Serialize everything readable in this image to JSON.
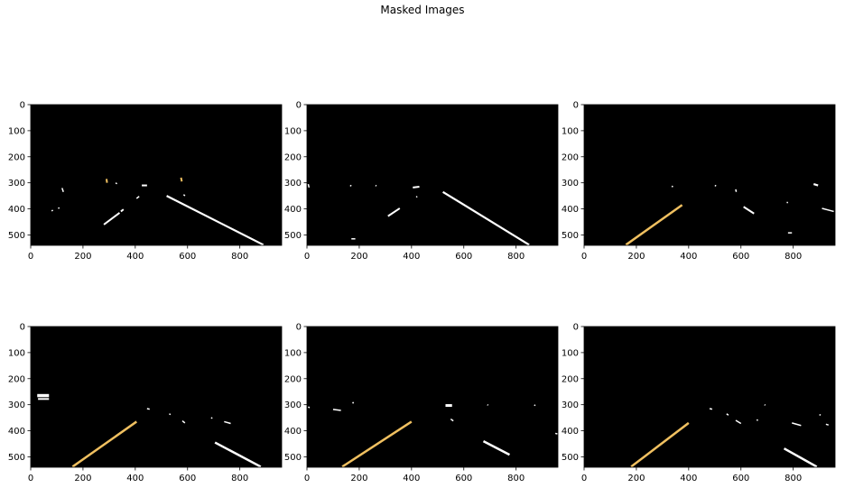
{
  "figure": {
    "title": "Masked Images",
    "background": "#ffffff",
    "image_background": "#000000",
    "white_marks": "#ffffff",
    "yellow_marks": "#f0c060",
    "x_ticks": [
      "0",
      "200",
      "400",
      "600",
      "800"
    ],
    "y_ticks": [
      "0",
      "100",
      "200",
      "300",
      "400",
      "500"
    ],
    "image_width": 960,
    "image_height": 540,
    "panels": [
      {
        "name": "image-1",
        "segments": [
          {
            "x1": 520,
            "y1": 350,
            "x2": 890,
            "y2": 538,
            "color": "white",
            "w": 2.2
          },
          {
            "x1": 280,
            "y1": 460,
            "x2": 340,
            "y2": 415,
            "color": "white",
            "w": 2
          },
          {
            "x1": 345,
            "y1": 410,
            "x2": 355,
            "y2": 402,
            "color": "white",
            "w": 2
          },
          {
            "x1": 425,
            "y1": 310,
            "x2": 445,
            "y2": 310,
            "color": "white",
            "w": 2
          },
          {
            "x1": 120,
            "y1": 320,
            "x2": 125,
            "y2": 335,
            "color": "white",
            "w": 1.5
          },
          {
            "x1": 80,
            "y1": 408,
            "x2": 85,
            "y2": 405,
            "color": "white",
            "w": 1.5
          },
          {
            "x1": 105,
            "y1": 398,
            "x2": 110,
            "y2": 396,
            "color": "white",
            "w": 1.5
          },
          {
            "x1": 325,
            "y1": 300,
            "x2": 330,
            "y2": 304,
            "color": "white",
            "w": 1.5
          },
          {
            "x1": 405,
            "y1": 360,
            "x2": 415,
            "y2": 352,
            "color": "white",
            "w": 1.5
          },
          {
            "x1": 290,
            "y1": 285,
            "x2": 292,
            "y2": 300,
            "color": "yellow",
            "w": 2
          },
          {
            "x1": 575,
            "y1": 280,
            "x2": 578,
            "y2": 295,
            "color": "yellow",
            "w": 2
          },
          {
            "x1": 585,
            "y1": 345,
            "x2": 590,
            "y2": 350,
            "color": "white",
            "w": 1.5
          }
        ]
      },
      {
        "name": "image-2",
        "segments": [
          {
            "x1": 520,
            "y1": 335,
            "x2": 850,
            "y2": 538,
            "color": "white",
            "w": 2.2
          },
          {
            "x1": 310,
            "y1": 428,
            "x2": 355,
            "y2": 398,
            "color": "white",
            "w": 2
          },
          {
            "x1": 405,
            "y1": 318,
            "x2": 430,
            "y2": 315,
            "color": "white",
            "w": 2
          },
          {
            "x1": 418,
            "y1": 355,
            "x2": 422,
            "y2": 352,
            "color": "white",
            "w": 1.5
          },
          {
            "x1": 5,
            "y1": 305,
            "x2": 8,
            "y2": 318,
            "color": "white",
            "w": 1.5
          },
          {
            "x1": 165,
            "y1": 310,
            "x2": 170,
            "y2": 312,
            "color": "white",
            "w": 1.5
          },
          {
            "x1": 262,
            "y1": 310,
            "x2": 266,
            "y2": 312,
            "color": "white",
            "w": 1.5
          },
          {
            "x1": 170,
            "y1": 515,
            "x2": 185,
            "y2": 515,
            "color": "white",
            "w": 1.5
          }
        ]
      },
      {
        "name": "image-3",
        "segments": [
          {
            "x1": 160,
            "y1": 538,
            "x2": 375,
            "y2": 385,
            "color": "yellow",
            "w": 2.5
          },
          {
            "x1": 610,
            "y1": 392,
            "x2": 650,
            "y2": 418,
            "color": "white",
            "w": 2
          },
          {
            "x1": 335,
            "y1": 313,
            "x2": 340,
            "y2": 315,
            "color": "white",
            "w": 1.5
          },
          {
            "x1": 500,
            "y1": 310,
            "x2": 505,
            "y2": 312,
            "color": "white",
            "w": 1.5
          },
          {
            "x1": 580,
            "y1": 325,
            "x2": 582,
            "y2": 335,
            "color": "white",
            "w": 1.5
          },
          {
            "x1": 780,
            "y1": 492,
            "x2": 795,
            "y2": 492,
            "color": "white",
            "w": 1.5
          },
          {
            "x1": 775,
            "y1": 375,
            "x2": 780,
            "y2": 376,
            "color": "white",
            "w": 1.5
          },
          {
            "x1": 878,
            "y1": 305,
            "x2": 895,
            "y2": 310,
            "color": "white",
            "w": 2.2
          },
          {
            "x1": 910,
            "y1": 398,
            "x2": 955,
            "y2": 410,
            "color": "white",
            "w": 1.5
          }
        ]
      },
      {
        "name": "image-4",
        "segments": [
          {
            "x1": 160,
            "y1": 538,
            "x2": 405,
            "y2": 365,
            "color": "yellow",
            "w": 2.5
          },
          {
            "x1": 705,
            "y1": 445,
            "x2": 880,
            "y2": 538,
            "color": "white",
            "w": 2.5
          },
          {
            "x1": 25,
            "y1": 265,
            "x2": 70,
            "y2": 265,
            "color": "white",
            "w": 3.5
          },
          {
            "x1": 28,
            "y1": 278,
            "x2": 70,
            "y2": 278,
            "color": "white",
            "w": 2
          },
          {
            "x1": 445,
            "y1": 315,
            "x2": 455,
            "y2": 317,
            "color": "white",
            "w": 1.5
          },
          {
            "x1": 530,
            "y1": 335,
            "x2": 535,
            "y2": 338,
            "color": "white",
            "w": 1.5
          },
          {
            "x1": 580,
            "y1": 362,
            "x2": 590,
            "y2": 370,
            "color": "white",
            "w": 1.5
          },
          {
            "x1": 690,
            "y1": 350,
            "x2": 695,
            "y2": 352,
            "color": "white",
            "w": 1.5
          },
          {
            "x1": 740,
            "y1": 365,
            "x2": 765,
            "y2": 372,
            "color": "white",
            "w": 1.5
          }
        ]
      },
      {
        "name": "image-5",
        "segments": [
          {
            "x1": 135,
            "y1": 538,
            "x2": 400,
            "y2": 365,
            "color": "yellow",
            "w": 2.5
          },
          {
            "x1": 675,
            "y1": 440,
            "x2": 775,
            "y2": 492,
            "color": "white",
            "w": 2.5
          },
          {
            "x1": 5,
            "y1": 308,
            "x2": 10,
            "y2": 312,
            "color": "white",
            "w": 1.5
          },
          {
            "x1": 100,
            "y1": 318,
            "x2": 130,
            "y2": 322,
            "color": "white",
            "w": 1.5
          },
          {
            "x1": 175,
            "y1": 290,
            "x2": 178,
            "y2": 295,
            "color": "white",
            "w": 1.5
          },
          {
            "x1": 530,
            "y1": 303,
            "x2": 555,
            "y2": 303,
            "color": "white",
            "w": 3
          },
          {
            "x1": 550,
            "y1": 355,
            "x2": 560,
            "y2": 362,
            "color": "white",
            "w": 1.5
          },
          {
            "x1": 690,
            "y1": 300,
            "x2": 693,
            "y2": 302,
            "color": "white",
            "w": 1.5
          },
          {
            "x1": 870,
            "y1": 300,
            "x2": 873,
            "y2": 304,
            "color": "white",
            "w": 1.5
          },
          {
            "x1": 950,
            "y1": 410,
            "x2": 958,
            "y2": 412,
            "color": "white",
            "w": 1.5
          }
        ]
      },
      {
        "name": "image-6",
        "segments": [
          {
            "x1": 180,
            "y1": 538,
            "x2": 400,
            "y2": 370,
            "color": "yellow",
            "w": 2.5
          },
          {
            "x1": 765,
            "y1": 468,
            "x2": 890,
            "y2": 538,
            "color": "white",
            "w": 2.5
          },
          {
            "x1": 480,
            "y1": 315,
            "x2": 490,
            "y2": 317,
            "color": "white",
            "w": 1.5
          },
          {
            "x1": 545,
            "y1": 335,
            "x2": 552,
            "y2": 340,
            "color": "white",
            "w": 1.5
          },
          {
            "x1": 580,
            "y1": 360,
            "x2": 600,
            "y2": 372,
            "color": "white",
            "w": 1.5
          },
          {
            "x1": 660,
            "y1": 358,
            "x2": 665,
            "y2": 360,
            "color": "white",
            "w": 1.5
          },
          {
            "x1": 690,
            "y1": 300,
            "x2": 693,
            "y2": 302,
            "color": "white",
            "w": 1.5
          },
          {
            "x1": 795,
            "y1": 370,
            "x2": 830,
            "y2": 380,
            "color": "white",
            "w": 1.5
          },
          {
            "x1": 900,
            "y1": 338,
            "x2": 905,
            "y2": 340,
            "color": "white",
            "w": 1.5
          },
          {
            "x1": 925,
            "y1": 375,
            "x2": 935,
            "y2": 378,
            "color": "white",
            "w": 1.5
          }
        ]
      }
    ]
  }
}
